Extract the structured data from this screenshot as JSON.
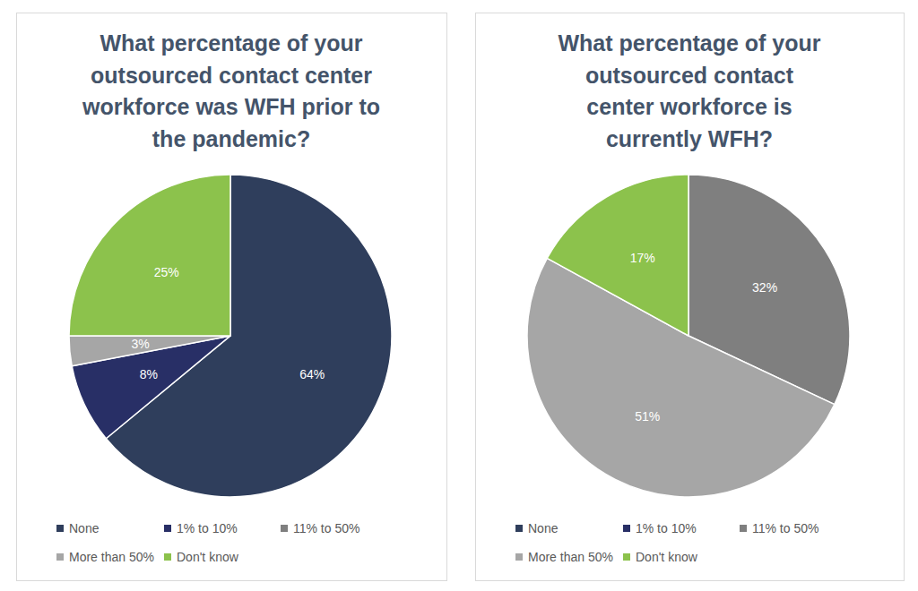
{
  "chart_data": [
    {
      "type": "pie",
      "title": "What percentage of your\noutsourced contact center\nworkforce was WFH prior to\nthe pandemic?",
      "categories": [
        "None",
        "1% to 10%",
        "11% to 50%",
        "More than 50%",
        "Don't know"
      ],
      "values": [
        64,
        8,
        0,
        3,
        25
      ],
      "value_labels": [
        "64%",
        "8%",
        null,
        "3%",
        "25%"
      ],
      "colors": [
        "#2f3e5c",
        "#282f66",
        "#7f7f7f",
        "#a6a6a6",
        "#8cc24c"
      ],
      "data_labels": true,
      "legend": "bottom"
    },
    {
      "type": "pie",
      "title": "What percentage of your\noutsourced contact\ncenter workforce is\ncurrently WFH?",
      "categories": [
        "None",
        "1% to 10%",
        "11% to 50%",
        "More than 50%",
        "Don't know"
      ],
      "values": [
        0,
        0,
        32,
        51,
        17
      ],
      "value_labels": [
        null,
        null,
        "32%",
        "51%",
        "17%"
      ],
      "colors": [
        "#2f3e5c",
        "#282f66",
        "#7f7f7f",
        "#a6a6a6",
        "#8cc24c"
      ],
      "data_labels": true,
      "legend": "bottom"
    }
  ]
}
